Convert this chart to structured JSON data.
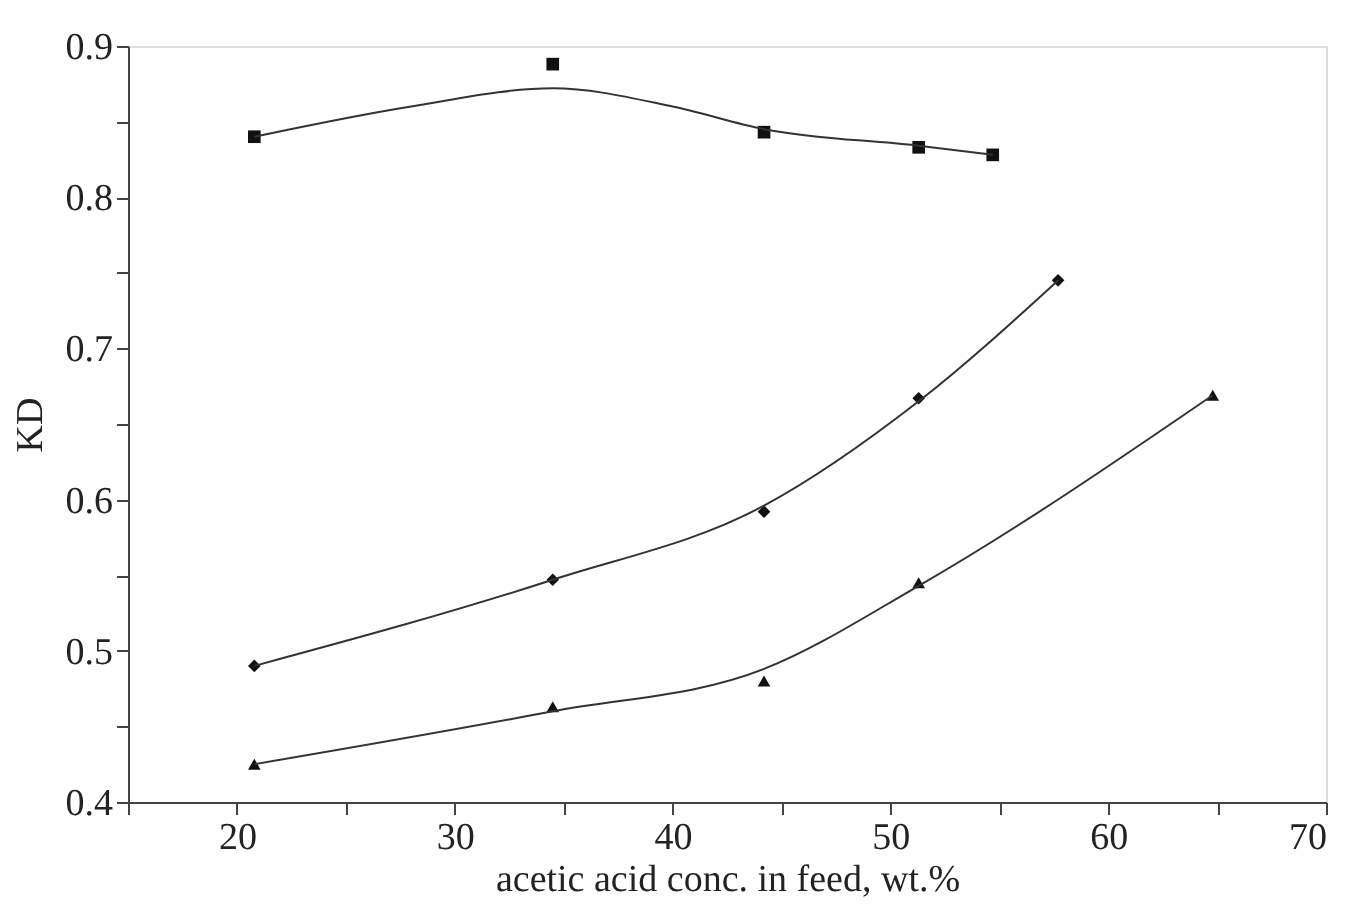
{
  "chart_data": {
    "type": "scatter",
    "xlabel": "acetic acid conc. in feed, wt.%",
    "ylabel": "KD",
    "xlim": [
      15,
      70
    ],
    "ylim": [
      0.4,
      0.9
    ],
    "xticks": [
      {
        "value": 15,
        "label": null
      },
      20,
      {
        "value": 25,
        "label": null
      },
      30,
      {
        "value": 35,
        "label": null
      },
      40,
      {
        "value": 45,
        "label": null
      },
      50,
      {
        "value": 55,
        "label": null
      },
      60,
      {
        "value": 65,
        "label": null
      },
      70
    ],
    "yticks": [
      0.4,
      {
        "value": 0.45,
        "label": null
      },
      0.5,
      {
        "value": 0.55,
        "label": null
      },
      0.6,
      {
        "value": 0.65,
        "label": null
      },
      0.7,
      {
        "value": 0.75,
        "label": null
      },
      0.8,
      {
        "value": 0.85,
        "label": null
      },
      0.9
    ],
    "grid": false,
    "series": [
      {
        "marker": "square",
        "color": "#111111",
        "x": [
          20.8,
          34.5,
          44.2,
          51.3,
          54.7
        ],
        "values": [
          0.84,
          0.888,
          0.843,
          0.833,
          0.828
        ]
      },
      {
        "marker": "diamond",
        "color": "#111111",
        "x": [
          20.8,
          34.5,
          44.2,
          51.3,
          57.7
        ],
        "values": [
          0.49,
          0.547,
          0.592,
          0.667,
          0.745
        ]
      },
      {
        "marker": "triangle",
        "color": "#111111",
        "x": [
          20.8,
          34.5,
          44.2,
          51.3,
          64.8
        ],
        "values": [
          0.425,
          0.463,
          0.48,
          0.545,
          0.669
        ]
      },
      {
        "type": "line",
        "line_style": "solid",
        "color": "#333333",
        "x": [
          20.8,
          28,
          34.5,
          40,
          44.2,
          51.3,
          54.7
        ],
        "values": [
          0.84,
          0.86,
          0.872,
          0.86,
          0.845,
          0.834,
          0.828
        ]
      },
      {
        "type": "line",
        "line_style": "solid",
        "color": "#333333",
        "x": [
          20.8,
          34.5,
          44.2,
          51.3,
          57.7
        ],
        "values": [
          0.49,
          0.547,
          0.596,
          0.665,
          0.745
        ]
      },
      {
        "type": "line",
        "line_style": "solid",
        "color": "#333333",
        "x": [
          20.8,
          34.5,
          44.2,
          51.3,
          64.8
        ],
        "values": [
          0.425,
          0.46,
          0.488,
          0.543,
          0.669
        ]
      }
    ]
  }
}
